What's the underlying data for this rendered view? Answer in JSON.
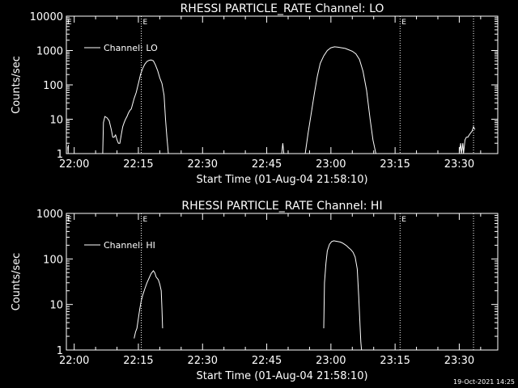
{
  "colors": {
    "background": "#000000",
    "foreground": "#ffffff"
  },
  "timestamp": "19-Oct-2021 14:25",
  "chart_data": [
    {
      "type": "line",
      "title": "RHESSI PARTICLE_RATE Channel: LO",
      "xlabel": "Start Time (01-Aug-04 21:58:10)",
      "ylabel": "Counts/sec",
      "y_scale": "log",
      "ylim": [
        1,
        10000
      ],
      "xlim": [
        "21:58:10",
        "23:39:00"
      ],
      "xticks": [
        "22:00",
        "22:15",
        "22:30",
        "22:45",
        "23:00",
        "23:15",
        "23:30"
      ],
      "yticks": [
        "1",
        "10",
        "100",
        "1000",
        "10000"
      ],
      "grid": false,
      "legend": {
        "position": "top-left",
        "entries": [
          "Channel: LO"
        ]
      },
      "markers": [
        {
          "time": "22:15:40",
          "label": "E"
        },
        {
          "time": "23:16:10",
          "label": "E"
        },
        {
          "time": "23:33:20",
          "label": ""
        }
      ],
      "series": [
        {
          "name": "Channel: LO",
          "segments": [
            {
              "x": [
                "21:58:30",
                "21:58:35",
                "21:58:40"
              ],
              "y": [
                1.6,
                1.0,
                1.8
              ]
            },
            {
              "x": [
                "22:06:40",
                "22:06:50",
                "22:07:10",
                "22:07:40",
                "22:08:10",
                "22:08:40",
                "22:09:00",
                "22:09:20",
                "22:09:40",
                "22:10:00",
                "22:10:20",
                "22:10:40",
                "22:11:00",
                "22:11:20",
                "22:11:40",
                "22:12:00",
                "22:12:20",
                "22:12:40",
                "22:13:00",
                "22:13:20",
                "22:13:40",
                "22:14:00",
                "22:14:30",
                "22:15:00",
                "22:15:30",
                "22:16:00",
                "22:16:30",
                "22:17:00",
                "22:17:30",
                "22:18:00",
                "22:18:30",
                "22:19:00",
                "22:19:30",
                "22:20:00",
                "22:20:30",
                "22:21:00",
                "22:21:20",
                "22:21:40",
                "22:22:00"
              ],
              "y": [
                1.0,
                8,
                12,
                11,
                9,
                5,
                3,
                3,
                3.5,
                2.5,
                2,
                2,
                3.5,
                6,
                8,
                10,
                12,
                15,
                18,
                20,
                28,
                40,
                60,
                110,
                200,
                300,
                400,
                480,
                520,
                530,
                500,
                380,
                260,
                160,
                110,
                50,
                10,
                3,
                1.0
              ]
            },
            {
              "x": [
                "22:48:30",
                "22:48:45",
                "22:49:00"
              ],
              "y": [
                1.0,
                2.0,
                1.0
              ]
            },
            {
              "x": [
                "22:54:00",
                "22:54:40",
                "22:55:30",
                "22:56:10",
                "22:56:50",
                "22:57:30",
                "22:58:20",
                "22:59:10",
                "23:00:00",
                "23:00:50",
                "23:01:40",
                "23:02:30",
                "23:03:20",
                "23:04:10",
                "23:05:00",
                "23:05:50",
                "23:06:40",
                "23:07:30",
                "23:08:20",
                "23:09:10",
                "23:09:50",
                "23:10:30"
              ],
              "y": [
                1.0,
                4,
                18,
                60,
                180,
                420,
                700,
                1000,
                1200,
                1280,
                1250,
                1200,
                1150,
                1050,
                950,
                800,
                550,
                250,
                70,
                10,
                2.5,
                1.0
              ]
            },
            {
              "x": [
                "23:30:00",
                "23:30:20",
                "23:30:30",
                "23:30:50",
                "23:31:00",
                "23:31:20",
                "23:31:40",
                "23:32:00",
                "23:32:20",
                "23:32:40",
                "23:33:00",
                "23:33:20",
                "23:33:40"
              ],
              "y": [
                1.0,
                2.0,
                1.0,
                2.0,
                1.0,
                2.5,
                3,
                3,
                3.5,
                4,
                4.5,
                6,
                5
              ]
            }
          ]
        }
      ]
    },
    {
      "type": "line",
      "title": "RHESSI PARTICLE_RATE Channel: HI",
      "xlabel": "Start Time (01-Aug-04 21:58:10)",
      "ylabel": "Counts/sec",
      "y_scale": "log",
      "ylim": [
        1,
        1000
      ],
      "xlim": [
        "21:58:10",
        "23:39:00"
      ],
      "xticks": [
        "22:00",
        "22:15",
        "22:30",
        "22:45",
        "23:00",
        "23:15",
        "23:30"
      ],
      "yticks": [
        "1",
        "10",
        "100",
        "1000"
      ],
      "grid": false,
      "legend": {
        "position": "top-left",
        "entries": [
          "Channel: HI"
        ]
      },
      "markers": [
        {
          "time": "22:15:40",
          "label": "E"
        },
        {
          "time": "23:16:10",
          "label": "E"
        },
        {
          "time": "23:33:20",
          "label": ""
        }
      ],
      "series": [
        {
          "name": "Channel: HI",
          "segments": [
            {
              "x": [
                "22:14:00",
                "22:14:20",
                "22:14:40",
                "22:15:00",
                "22:15:20",
                "22:15:40",
                "22:16:00",
                "22:16:30",
                "22:17:00",
                "22:17:30",
                "22:18:00",
                "22:18:30",
                "22:18:50",
                "22:19:10",
                "22:19:40",
                "22:20:00",
                "22:20:20",
                "22:20:30",
                "22:20:40"
              ],
              "y": [
                1.8,
                2.5,
                3,
                5,
                8,
                12,
                16,
                22,
                30,
                38,
                48,
                55,
                50,
                40,
                35,
                28,
                20,
                8,
                3
              ]
            },
            {
              "x": [
                "22:58:20",
                "22:58:30",
                "22:58:50",
                "22:59:10",
                "22:59:40",
                "23:00:10",
                "23:00:40",
                "23:01:10",
                "23:01:40",
                "23:02:10",
                "23:02:40",
                "23:03:10",
                "23:03:40",
                "23:04:10",
                "23:04:40",
                "23:05:10",
                "23:05:40",
                "23:06:10",
                "23:06:30",
                "23:06:50",
                "23:07:00",
                "23:07:10"
              ],
              "y": [
                3,
                30,
                80,
                150,
                210,
                240,
                250,
                245,
                240,
                235,
                225,
                210,
                195,
                175,
                160,
                140,
                110,
                60,
                15,
                3,
                1.5,
                1.0
              ]
            }
          ]
        }
      ]
    }
  ]
}
